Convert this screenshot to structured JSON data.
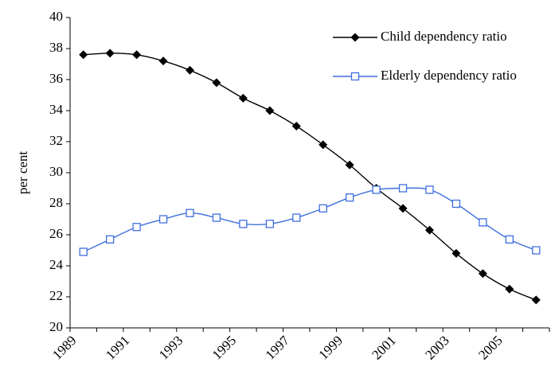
{
  "chart_data": {
    "type": "line",
    "y_label": "per cent",
    "categories": [
      "1989",
      null,
      "1991",
      null,
      "1993",
      null,
      "1995",
      null,
      "1997",
      null,
      "1999",
      null,
      "2001",
      null,
      "2003",
      null,
      "2005",
      null
    ],
    "series": [
      {
        "name": "Child dependency ratio",
        "color": "#000000",
        "marker": "diamond",
        "values": [
          37.6,
          37.7,
          37.6,
          37.2,
          36.6,
          35.8,
          34.8,
          34.0,
          33.0,
          31.8,
          30.5,
          29.0,
          27.7,
          26.3,
          24.8,
          23.5,
          22.5,
          21.8
        ]
      },
      {
        "name": "Elderly dependency ratio",
        "color": "#3f6fe0",
        "marker": "square",
        "values": [
          24.9,
          25.7,
          26.5,
          27.0,
          27.4,
          27.1,
          26.7,
          26.7,
          27.1,
          27.7,
          28.4,
          28.9,
          29.0,
          28.9,
          28.0,
          26.8,
          25.7,
          25.0
        ]
      }
    ],
    "ylim": [
      20,
      40
    ],
    "yticks": [
      20,
      22,
      24,
      26,
      28,
      30,
      32,
      34,
      36,
      38,
      40
    ],
    "grid": false,
    "legend": "top-right"
  }
}
